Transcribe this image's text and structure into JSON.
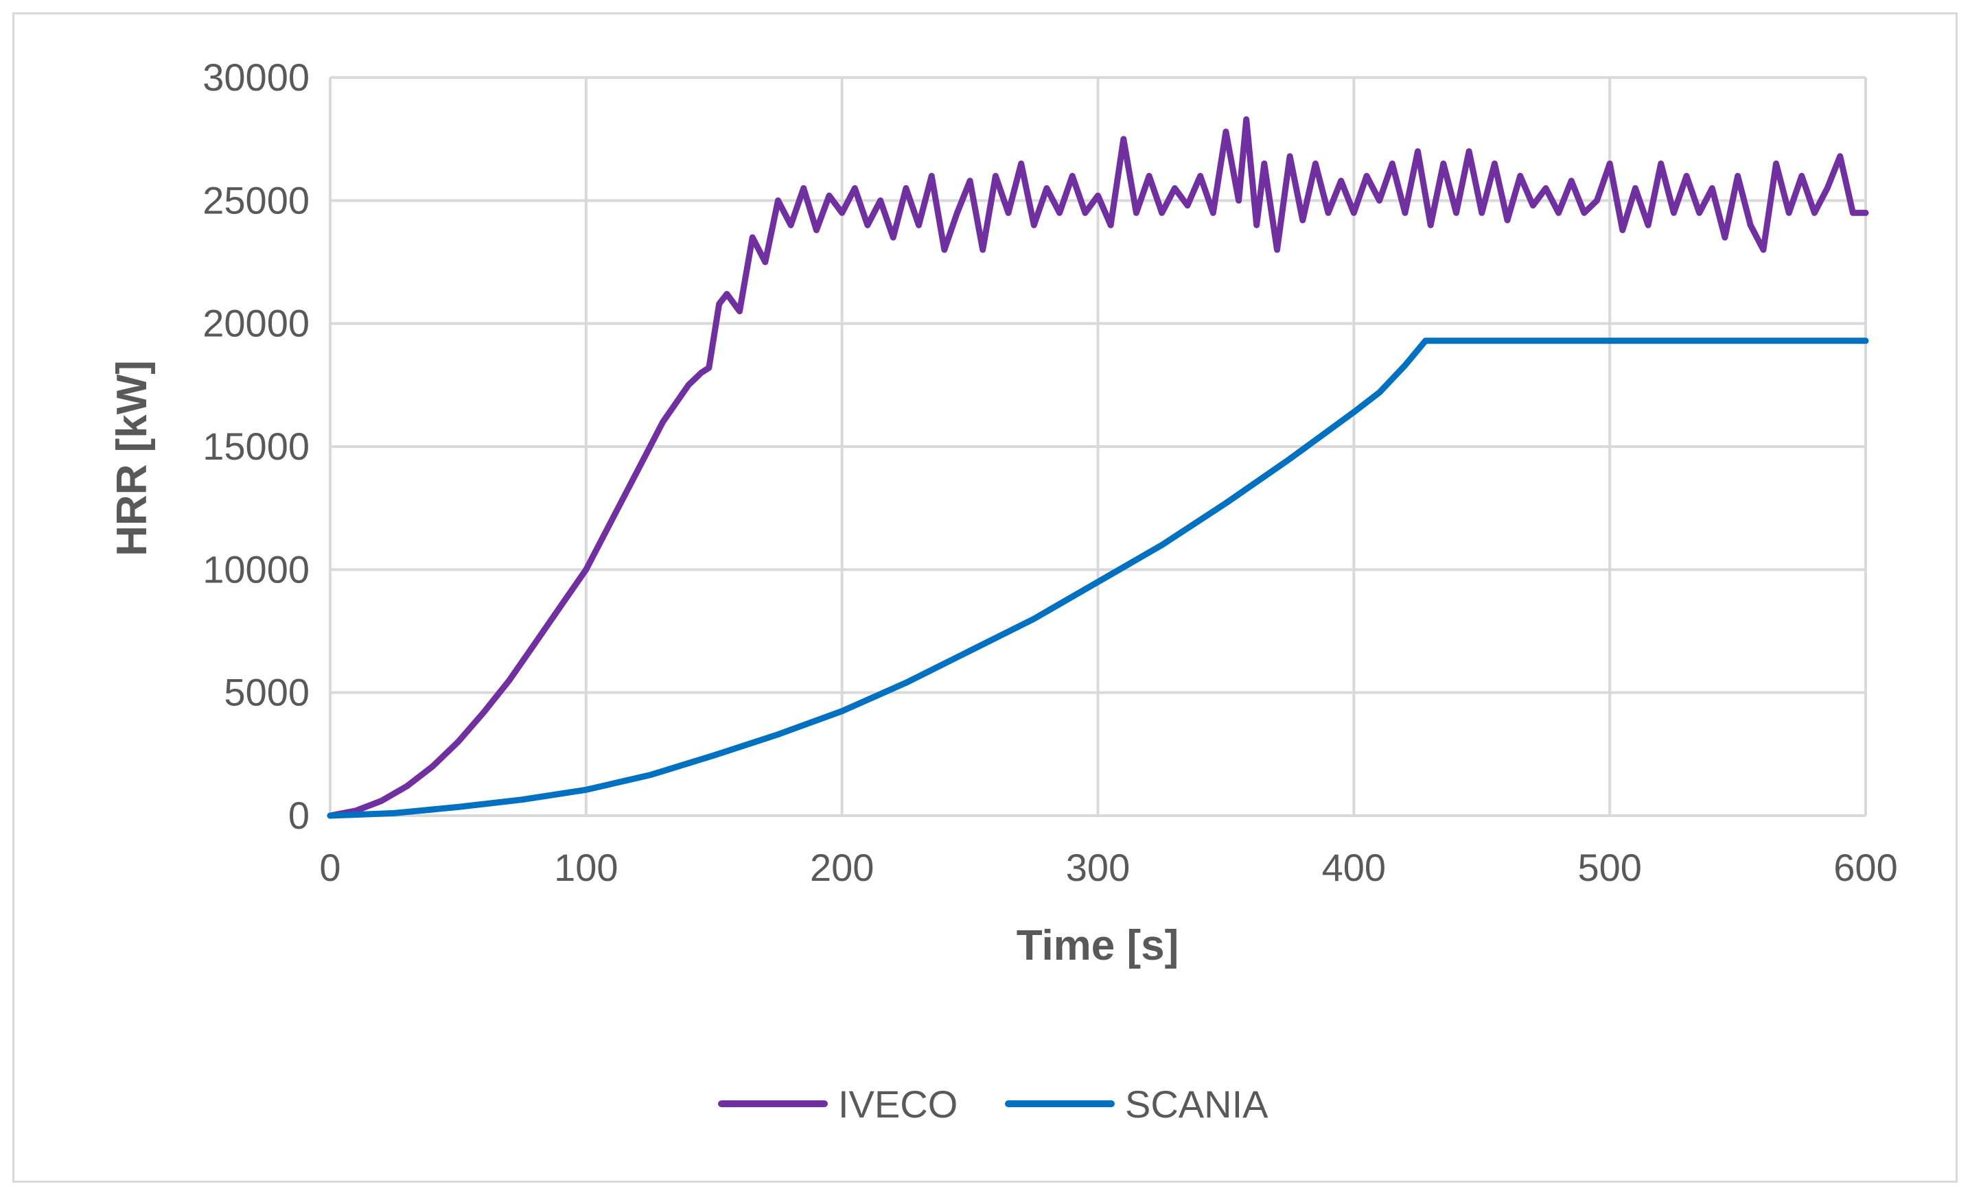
{
  "chart_data": {
    "type": "line",
    "title": "",
    "xlabel": "Time [s]",
    "ylabel": "HRR [kW]",
    "xlim": [
      0,
      600
    ],
    "ylim": [
      0,
      30000
    ],
    "xticks": [
      "0",
      "100",
      "200",
      "300",
      "400",
      "500",
      "600"
    ],
    "yticks": [
      "0",
      "5000",
      "10000",
      "15000",
      "20000",
      "25000",
      "30000"
    ],
    "grid": true,
    "legend_position": "bottom",
    "series": [
      {
        "name": "IVECO",
        "color": "#7030a0",
        "x": [
          0,
          10,
          20,
          30,
          40,
          50,
          60,
          70,
          80,
          90,
          100,
          110,
          120,
          130,
          140,
          145,
          148,
          152,
          155,
          160,
          165,
          170,
          175,
          180,
          185,
          190,
          195,
          200,
          205,
          210,
          215,
          220,
          225,
          230,
          235,
          240,
          245,
          250,
          255,
          260,
          265,
          270,
          275,
          280,
          285,
          290,
          295,
          300,
          305,
          310,
          315,
          320,
          325,
          330,
          335,
          340,
          345,
          350,
          355,
          358,
          362,
          365,
          370,
          375,
          380,
          385,
          390,
          395,
          400,
          405,
          410,
          415,
          420,
          425,
          430,
          435,
          440,
          445,
          450,
          455,
          460,
          465,
          470,
          475,
          480,
          485,
          490,
          495,
          500,
          505,
          510,
          515,
          520,
          525,
          530,
          535,
          540,
          545,
          550,
          555,
          560,
          565,
          570,
          575,
          580,
          585,
          590,
          595,
          600
        ],
        "values": [
          0,
          200,
          600,
          1200,
          2000,
          3000,
          4200,
          5500,
          7000,
          8500,
          10000,
          12000,
          14000,
          16000,
          17500,
          18000,
          18200,
          20800,
          21200,
          20500,
          23500,
          22500,
          25000,
          24000,
          25500,
          23800,
          25200,
          24500,
          25500,
          24000,
          25000,
          23500,
          25500,
          24000,
          26000,
          23000,
          24500,
          25800,
          23000,
          26000,
          24500,
          26500,
          24000,
          25500,
          24500,
          26000,
          24500,
          25200,
          24000,
          27500,
          24500,
          26000,
          24500,
          25500,
          24800,
          26000,
          24500,
          27800,
          25000,
          28300,
          24000,
          26500,
          23000,
          26800,
          24200,
          26500,
          24500,
          25800,
          24500,
          26000,
          25000,
          26500,
          24500,
          27000,
          24000,
          26500,
          24500,
          27000,
          24500,
          26500,
          24200,
          26000,
          24800,
          25500,
          24500,
          25800,
          24500,
          25000,
          26500,
          23800,
          25500,
          24000,
          26500,
          24500,
          26000,
          24500,
          25500,
          23500,
          26000,
          24000,
          23000,
          26500,
          24500,
          26000,
          24500,
          25500,
          26800,
          24500,
          24500
        ]
      },
      {
        "name": "SCANIA",
        "color": "#0070c0",
        "x": [
          0,
          25,
          50,
          75,
          100,
          125,
          150,
          175,
          200,
          225,
          250,
          275,
          300,
          325,
          350,
          375,
          400,
          410,
          420,
          428,
          435,
          450,
          475,
          500,
          525,
          550,
          575,
          600
        ],
        "values": [
          0,
          100,
          350,
          650,
          1050,
          1650,
          2450,
          3300,
          4250,
          5400,
          6700,
          8000,
          9500,
          11000,
          12700,
          14500,
          16400,
          17200,
          18300,
          19300,
          19300,
          19300,
          19300,
          19300,
          19300,
          19300,
          19300,
          19300
        ]
      }
    ]
  }
}
